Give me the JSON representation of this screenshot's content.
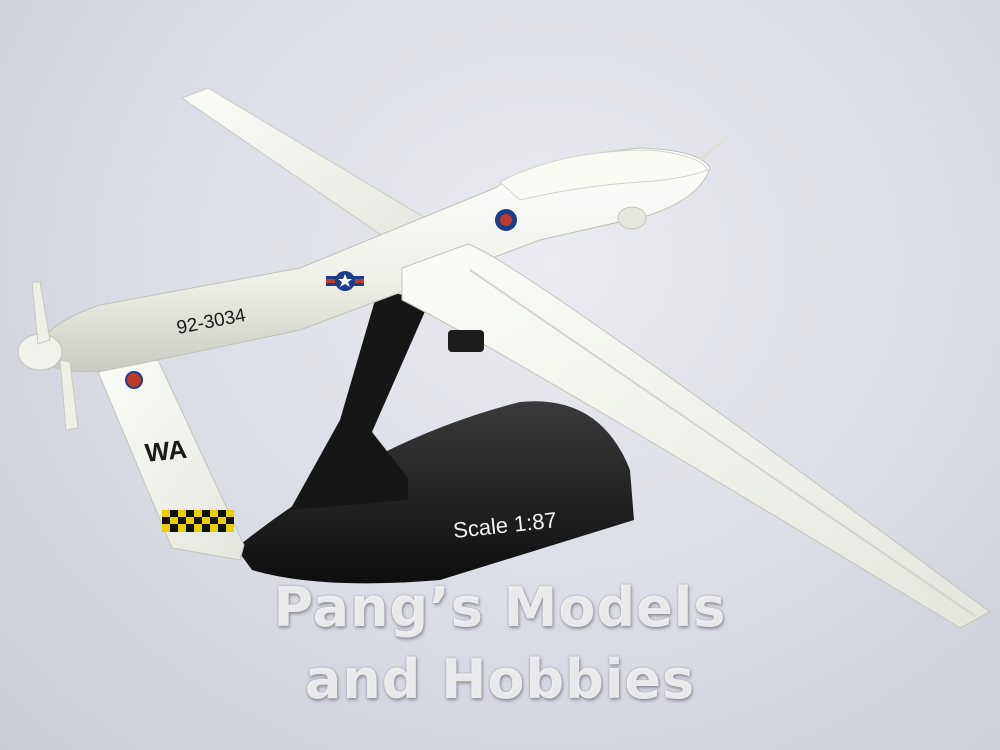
{
  "photo": {
    "subject": "drone-model",
    "colors": {
      "background": "#dadce4",
      "fuselage": "#f2f3ec",
      "stand": "#1a1a1a"
    }
  },
  "markings": {
    "serial": "92-3034",
    "tail_code": "WA",
    "stand_label": "Scale 1:87"
  },
  "watermark": {
    "line1": "Pang’s Models",
    "line2": "and Hobbies"
  }
}
